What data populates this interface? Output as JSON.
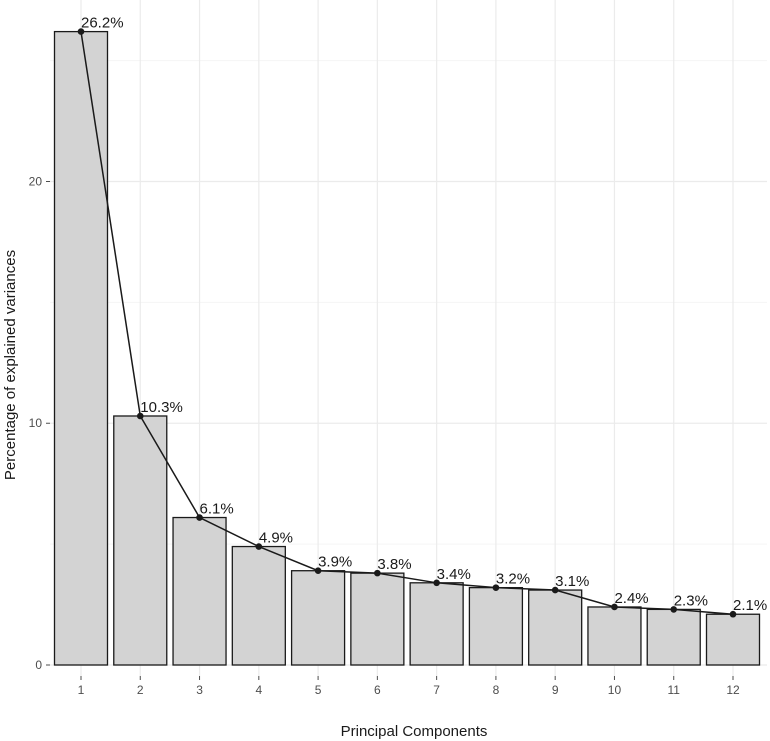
{
  "chart_data": {
    "type": "bar",
    "title": "",
    "xlabel": "Principal Components",
    "ylabel": "Percentage of explained variances",
    "categories": [
      "1",
      "2",
      "3",
      "4",
      "5",
      "6",
      "7",
      "8",
      "9",
      "10",
      "11",
      "12"
    ],
    "values": [
      26.2,
      10.3,
      6.1,
      4.9,
      3.9,
      3.8,
      3.4,
      3.2,
      3.1,
      2.4,
      2.3,
      2.1
    ],
    "data_labels": [
      "26.2%",
      "10.3%",
      "6.1%",
      "4.9%",
      "3.9%",
      "3.8%",
      "3.4%",
      "3.2%",
      "3.1%",
      "2.4%",
      "2.3%",
      "2.1%"
    ],
    "ylim": [
      0,
      26.2
    ],
    "yticks": [
      0,
      10,
      20
    ],
    "grid": true,
    "overlay": "line with points",
    "colors": {
      "bar_fill": "#d3d3d3",
      "bar_stroke": "#1a1a1a",
      "line": "#1a1a1a",
      "grid_major": "#ebebeb",
      "grid_minor": "#f5f5f5"
    }
  }
}
